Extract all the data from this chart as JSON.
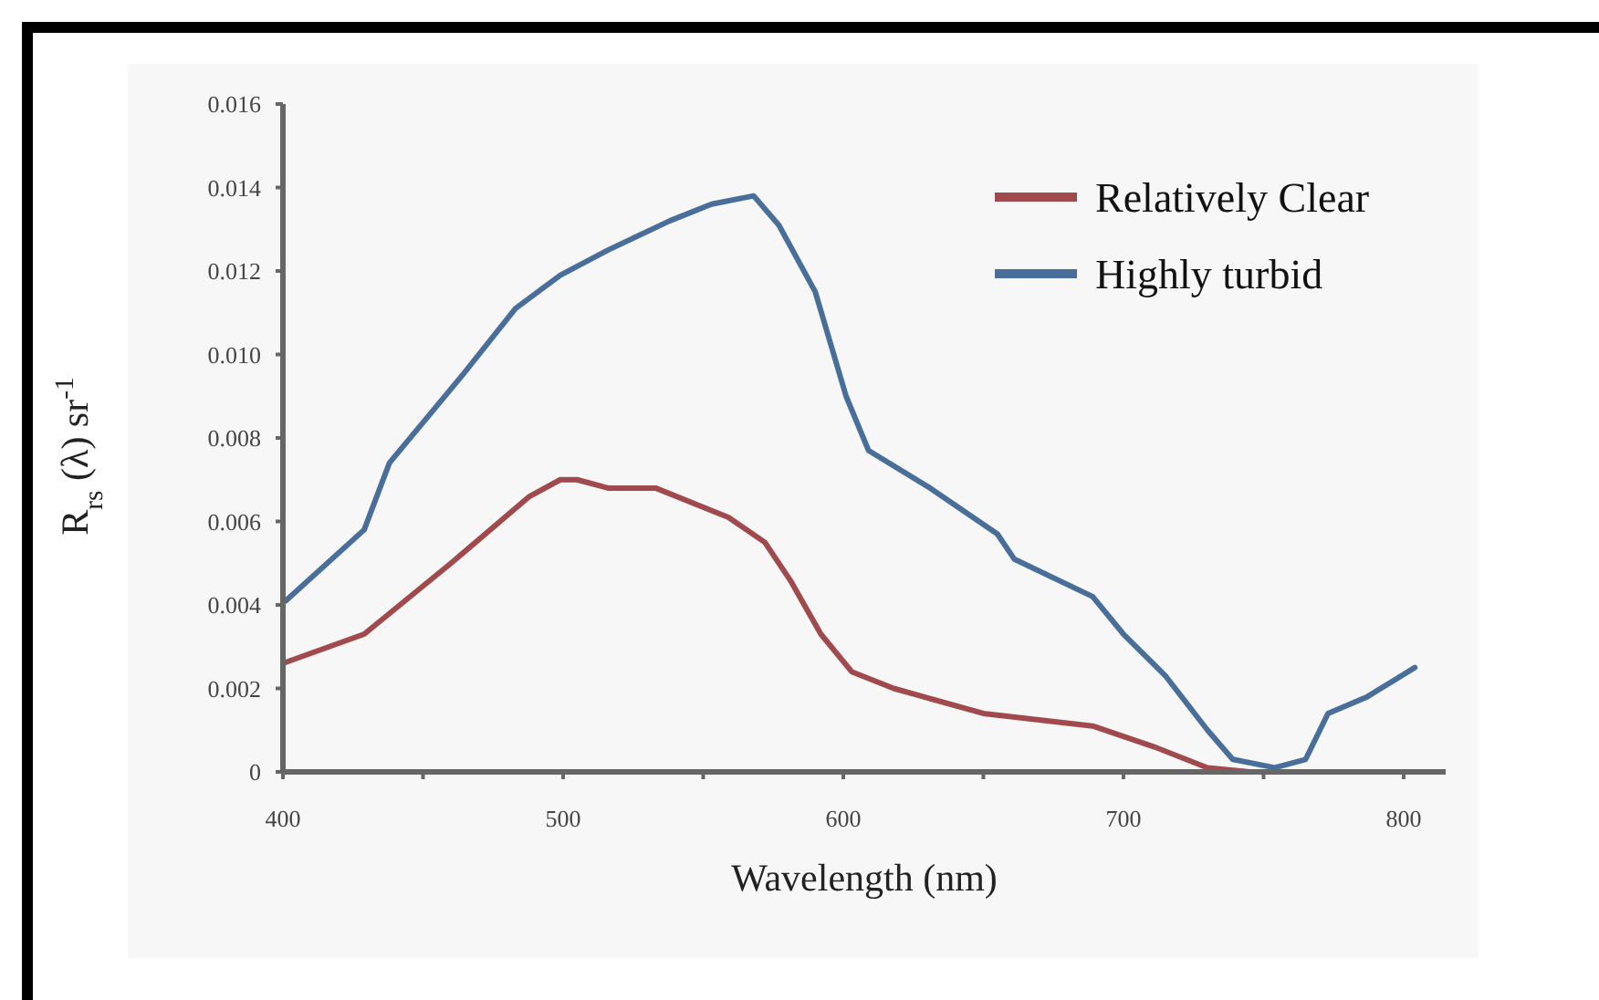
{
  "chart_data": {
    "type": "line",
    "xlabel": "Wavelength (nm)",
    "ylabel": "R$_{rs}$ (λ) sr$^{-1}$",
    "xlim": [
      400,
      815
    ],
    "xticks": [
      400,
      {
        "value": 450,
        "label": null
      },
      500,
      {
        "value": 550,
        "label": null
      },
      600,
      {
        "value": 650,
        "label": null
      },
      700,
      {
        "value": 750,
        "label": null
      },
      800
    ],
    "ylim": [
      0,
      0.016
    ],
    "yticks": [
      0,
      {
        "value": 0.002,
        "label": "0.002"
      },
      {
        "value": 0.004,
        "label": "0.004"
      },
      {
        "value": 0.006,
        "label": "0.006"
      },
      {
        "value": 0.008,
        "label": "0.008"
      },
      {
        "value": 0.01,
        "label": "0.010"
      },
      {
        "value": 0.012,
        "label": "0.012"
      },
      {
        "value": 0.014,
        "label": "0.014"
      },
      {
        "value": 0.016,
        "label": "0.016"
      }
    ],
    "grid": false,
    "legend": "top right",
    "line_style": "solid",
    "marker": "none",
    "series": [
      {
        "name": "Relatively Clear",
        "color": "#a04a4e",
        "x": [
          400,
          429,
          460,
          488,
          499,
          505,
          516,
          533,
          559,
          572,
          581,
          592,
          603,
          618,
          650,
          689,
          711,
          730,
          745,
          802
        ],
        "values": [
          0.0026,
          0.0033,
          0.005,
          0.0066,
          0.007,
          0.007,
          0.0068,
          0.0068,
          0.0061,
          0.0055,
          0.0046,
          0.0033,
          0.0024,
          0.002,
          0.0014,
          0.0011,
          0.0006,
          0.0001,
          0,
          0
        ]
      },
      {
        "name": "Highly turbid",
        "color": "#4a6e9a",
        "x": [
          401,
          429,
          438,
          464,
          483,
          499,
          516,
          538,
          553,
          568,
          577,
          590,
          601,
          609,
          631,
          655,
          661,
          689,
          700,
          715,
          730,
          739,
          754,
          765,
          773,
          787,
          804
        ],
        "values": [
          0.0041,
          0.0058,
          0.0074,
          0.0095,
          0.0111,
          0.0119,
          0.0125,
          0.0132,
          0.0136,
          0.0138,
          0.0131,
          0.0115,
          0.009,
          0.0077,
          0.0068,
          0.0057,
          0.0051,
          0.0042,
          0.0033,
          0.0023,
          0.001,
          0.0003,
          0.0001,
          0.0003,
          0.0014,
          0.0018,
          0.0025
        ]
      }
    ]
  }
}
